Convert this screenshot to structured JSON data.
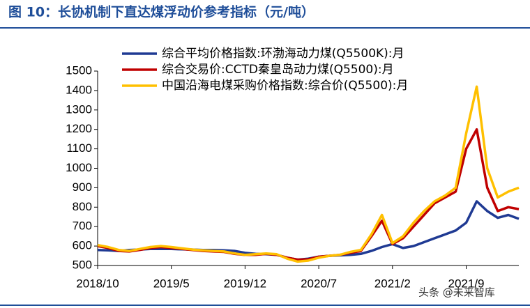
{
  "chart_data": {
    "type": "line",
    "title": "图 10：长协机制下直达煤浮动价参考指标（元/吨）",
    "watermark": "头条 @未来智库",
    "categories": [
      "2018/10",
      null,
      null,
      null,
      null,
      null,
      null,
      "2019/5",
      null,
      null,
      null,
      null,
      null,
      null,
      "2019/12",
      null,
      null,
      null,
      null,
      null,
      null,
      "2020/7",
      null,
      null,
      null,
      null,
      null,
      null,
      "2021/2",
      null,
      null,
      null,
      null,
      null,
      null,
      "2021/9",
      null,
      null,
      null,
      null,
      null
    ],
    "series": [
      {
        "name": "综合平均价格指数:环渤海动力煤(Q5500K):月",
        "color": "#1f3a93",
        "values": [
          580,
          578,
          575,
          580,
          582,
          585,
          585,
          585,
          583,
          582,
          580,
          580,
          578,
          575,
          565,
          560,
          558,
          555,
          540,
          530,
          535,
          545,
          550,
          552,
          555,
          560,
          575,
          595,
          610,
          590,
          600,
          620,
          640,
          660,
          680,
          720,
          830,
          780,
          745,
          760,
          740
        ]
      },
      {
        "name": "综合交易价:CCTD秦皇岛动力煤(Q5500):月",
        "color": "#c00000",
        "values": [
          600,
          590,
          575,
          572,
          580,
          590,
          595,
          590,
          585,
          580,
          575,
          572,
          570,
          560,
          555,
          555,
          560,
          555,
          540,
          530,
          532,
          545,
          550,
          555,
          565,
          575,
          650,
          730,
          610,
          640,
          700,
          760,
          820,
          850,
          880,
          1100,
          1200,
          900,
          780,
          800,
          790
        ]
      },
      {
        "name": "中国沿海电煤采购价格指数:综合价(Q5500):月",
        "color": "#ffc000",
        "values": [
          605,
          595,
          580,
          575,
          585,
          595,
          600,
          595,
          588,
          582,
          578,
          575,
          572,
          562,
          555,
          558,
          562,
          558,
          535,
          520,
          525,
          540,
          550,
          555,
          570,
          580,
          660,
          760,
          615,
          650,
          720,
          780,
          830,
          860,
          900,
          1180,
          1420,
          1000,
          850,
          880,
          900
        ]
      }
    ],
    "ylim": [
      500,
      1500
    ],
    "yticks": [
      500,
      600,
      700,
      800,
      900,
      1000,
      1100,
      1200,
      1300,
      1400,
      1500
    ],
    "legend": "top-left"
  }
}
